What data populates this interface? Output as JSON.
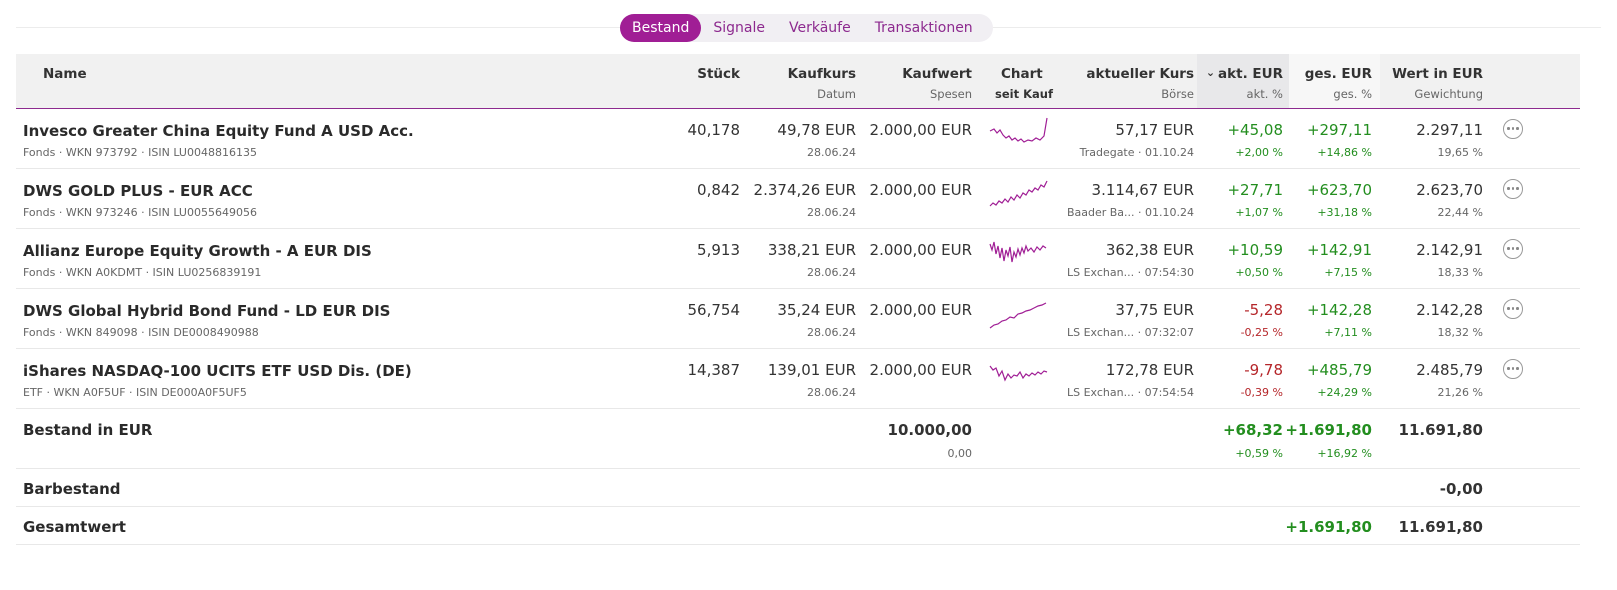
{
  "tabs": [
    "Bestand",
    "Signale",
    "Verkäufe",
    "Transaktionen"
  ],
  "header": {
    "name": "Name",
    "stueck": "Stück",
    "kaufkurs": "Kaufkurs",
    "datum": "Datum",
    "kaufwert": "Kaufwert",
    "spesen": "Spesen",
    "chart": "Chart",
    "seit_kauf": "seit Kauf",
    "aktueller_kurs": "aktueller Kurs",
    "boerse": "Börse",
    "akt_eur": "akt. EUR",
    "akt_pct": "akt. %",
    "ges_eur": "ges. EUR",
    "ges_pct": "ges. %",
    "wert": "Wert in EUR",
    "gewichtung": "Gewichtung",
    "sort_icon": "chevron-down-icon"
  },
  "rows": [
    {
      "name": "Invesco Greater China Equity Fund A USD Acc.",
      "sub": "Fonds · WKN 973792 · ISIN LU0048816135",
      "stueck": "40,178",
      "kaufkurs": "49,78 EUR",
      "datum": "28.06.24",
      "kaufwert": "2.000,00 EUR",
      "kurs": "57,17 EUR",
      "boerse": "Tradegate · 01.10.24",
      "akt_eur": "+45,08",
      "akt_pct": "+2,00 %",
      "ges_eur": "+297,11",
      "ges_pct": "+14,86 %",
      "wert": "2.297,11",
      "gewichtung": "19,65 %",
      "akt_sign": "pos",
      "ges_sign": "pos"
    },
    {
      "name": "DWS GOLD PLUS - EUR ACC",
      "sub": "Fonds · WKN 973246 · ISIN LU0055649056",
      "stueck": "0,842",
      "kaufkurs": "2.374,26 EUR",
      "datum": "28.06.24",
      "kaufwert": "2.000,00 EUR",
      "kurs": "3.114,67 EUR",
      "boerse": "Baader Ba... · 01.10.24",
      "akt_eur": "+27,71",
      "akt_pct": "+1,07 %",
      "ges_eur": "+623,70",
      "ges_pct": "+31,18 %",
      "wert": "2.623,70",
      "gewichtung": "22,44 %",
      "akt_sign": "pos",
      "ges_sign": "pos"
    },
    {
      "name": "Allianz Europe Equity Growth - A EUR DIS",
      "sub": "Fonds · WKN A0KDMT · ISIN LU0256839191",
      "stueck": "5,913",
      "kaufkurs": "338,21 EUR",
      "datum": "28.06.24",
      "kaufwert": "2.000,00 EUR",
      "kurs": "362,38 EUR",
      "boerse": "LS Exchan... · 07:54:30",
      "akt_eur": "+10,59",
      "akt_pct": "+0,50 %",
      "ges_eur": "+142,91",
      "ges_pct": "+7,15 %",
      "wert": "2.142,91",
      "gewichtung": "18,33 %",
      "akt_sign": "pos",
      "ges_sign": "pos"
    },
    {
      "name": "DWS Global Hybrid Bond Fund - LD EUR DIS",
      "sub": "Fonds · WKN 849098 · ISIN DE0008490988",
      "stueck": "56,754",
      "kaufkurs": "35,24 EUR",
      "datum": "28.06.24",
      "kaufwert": "2.000,00 EUR",
      "kurs": "37,75 EUR",
      "boerse": "LS Exchan... · 07:32:07",
      "akt_eur": "-5,28",
      "akt_pct": "-0,25 %",
      "ges_eur": "+142,28",
      "ges_pct": "+7,11 %",
      "wert": "2.142,28",
      "gewichtung": "18,32 %",
      "akt_sign": "neg",
      "ges_sign": "pos"
    },
    {
      "name": "iShares NASDAQ-100 UCITS ETF USD Dis. (DE)",
      "sub": "ETF · WKN A0F5UF · ISIN DE000A0F5UF5",
      "stueck": "14,387",
      "kaufkurs": "139,01 EUR",
      "datum": "28.06.24",
      "kaufwert": "2.000,00 EUR",
      "kurs": "172,78 EUR",
      "boerse": "LS Exchan... · 07:54:54",
      "akt_eur": "-9,78",
      "akt_pct": "-0,39 %",
      "ges_eur": "+485,79",
      "ges_pct": "+24,29 %",
      "wert": "2.485,79",
      "gewichtung": "21,26 %",
      "akt_sign": "neg",
      "ges_sign": "pos"
    }
  ],
  "summary": {
    "bestand_label": "Bestand in EUR",
    "kaufwert": "10.000,00",
    "spesen": "0,00",
    "akt_eur": "+68,32",
    "akt_pct": "+0,59 %",
    "ges_eur": "+1.691,80",
    "ges_pct": "+16,92 %",
    "wert": "11.691,80",
    "barbestand_label": "Barbestand",
    "barbestand": "-0,00",
    "gesamt_label": "Gesamtwert",
    "gesamt_ges_eur": "+1.691,80",
    "gesamt_wert": "11.691,80"
  },
  "colors": {
    "accent": "#a01e95",
    "positive": "#238e1f",
    "negative": "#b5262a",
    "spark": "#a01e95"
  },
  "icons": {
    "row_action": "more-options-icon"
  }
}
